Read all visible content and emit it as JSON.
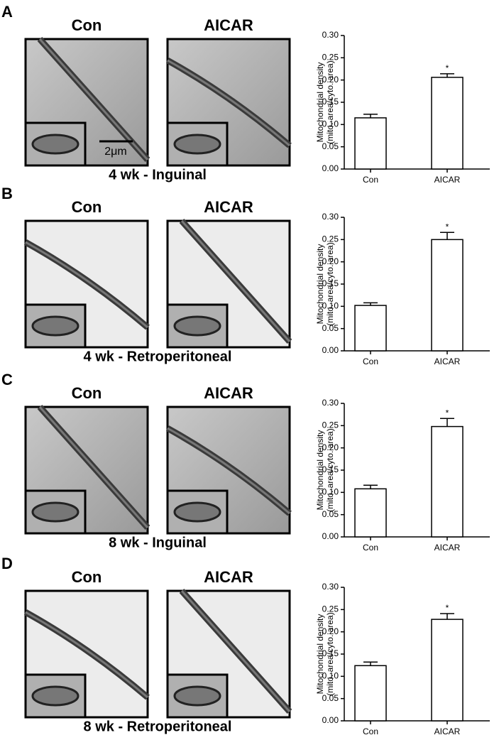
{
  "scale_bar": "2μm",
  "panels": [
    {
      "letter": "A",
      "image_labels": [
        "Con",
        "AICAR"
      ],
      "caption": "4 wk - Inguinal"
    },
    {
      "letter": "B",
      "image_labels": [
        "Con",
        "AICAR"
      ],
      "caption": "4 wk - Retroperitoneal"
    },
    {
      "letter": "C",
      "image_labels": [
        "Con",
        "AICAR"
      ],
      "caption": "8 wk - Inguinal"
    },
    {
      "letter": "D",
      "image_labels": [
        "Con",
        "AICAR"
      ],
      "caption": "8 wk - Retroperitoneal"
    }
  ],
  "chart_data": [
    {
      "type": "bar",
      "ylabel": [
        "Mitochondrial density",
        "(mito. area/cyto. area)"
      ],
      "categories": [
        "Con",
        "AICAR"
      ],
      "values": [
        0.115,
        0.206
      ],
      "errors": [
        0.008,
        0.008
      ],
      "color": "#ffffff",
      "annotations": [
        {
          "text": "*",
          "x": "AICAR"
        }
      ],
      "ylim": [
        0,
        0.3
      ],
      "yticks": [
        {
          "value": 0,
          "label": "0.00"
        },
        {
          "value": 0.05,
          "label": "0.05"
        },
        {
          "value": 0.1,
          "label": "0.10"
        },
        {
          "value": 0.15,
          "label": "0.15"
        },
        {
          "value": 0.2,
          "label": "0.20"
        },
        {
          "value": 0.25,
          "label": "0.25"
        },
        {
          "value": 0.3,
          "label": "0.30"
        }
      ]
    },
    {
      "type": "bar",
      "ylabel": [
        "Mitochondrial density",
        "(mito. area/cyto. area)"
      ],
      "categories": [
        "Con",
        "AICAR"
      ],
      "values": [
        0.102,
        0.25
      ],
      "errors": [
        0.006,
        0.016
      ],
      "color": "#ffffff",
      "annotations": [
        {
          "text": "*",
          "x": "AICAR"
        }
      ],
      "ylim": [
        0,
        0.3
      ],
      "yticks": [
        {
          "value": 0,
          "label": "0.00"
        },
        {
          "value": 0.05,
          "label": "0.05"
        },
        {
          "value": 0.1,
          "label": "0.10"
        },
        {
          "value": 0.15,
          "label": "0.15"
        },
        {
          "value": 0.2,
          "label": "0.20"
        },
        {
          "value": 0.25,
          "label": "0.25"
        },
        {
          "value": 0.3,
          "label": "0.30"
        }
      ]
    },
    {
      "type": "bar",
      "ylabel": [
        "Mitochondrial density",
        "(mito. area/cyto. area)"
      ],
      "categories": [
        "Con",
        "AICAR"
      ],
      "values": [
        0.108,
        0.248
      ],
      "errors": [
        0.008,
        0.018
      ],
      "color": "#ffffff",
      "annotations": [
        {
          "text": "*",
          "x": "AICAR"
        }
      ],
      "ylim": [
        0,
        0.3
      ],
      "yticks": [
        {
          "value": 0,
          "label": "0.00"
        },
        {
          "value": 0.05,
          "label": "0.05"
        },
        {
          "value": 0.1,
          "label": "0.10"
        },
        {
          "value": 0.15,
          "label": "0.15"
        },
        {
          "value": 0.2,
          "label": "0.20"
        },
        {
          "value": 0.25,
          "label": "0.25"
        },
        {
          "value": 0.3,
          "label": "0.30"
        }
      ]
    },
    {
      "type": "bar",
      "ylabel": [
        "Mitochondrial density",
        "(mito. area/cyto. area)"
      ],
      "categories": [
        "Con",
        "AICAR"
      ],
      "values": [
        0.124,
        0.228
      ],
      "errors": [
        0.008,
        0.013
      ],
      "color": "#ffffff",
      "annotations": [
        {
          "text": "*",
          "x": "AICAR"
        }
      ],
      "ylim": [
        0,
        0.3
      ],
      "yticks": [
        {
          "value": 0,
          "label": "0.00"
        },
        {
          "value": 0.05,
          "label": "0.05"
        },
        {
          "value": 0.1,
          "label": "0.10"
        },
        {
          "value": 0.15,
          "label": "0.15"
        },
        {
          "value": 0.2,
          "label": "0.20"
        },
        {
          "value": 0.25,
          "label": "0.25"
        },
        {
          "value": 0.3,
          "label": "0.30"
        }
      ]
    }
  ]
}
